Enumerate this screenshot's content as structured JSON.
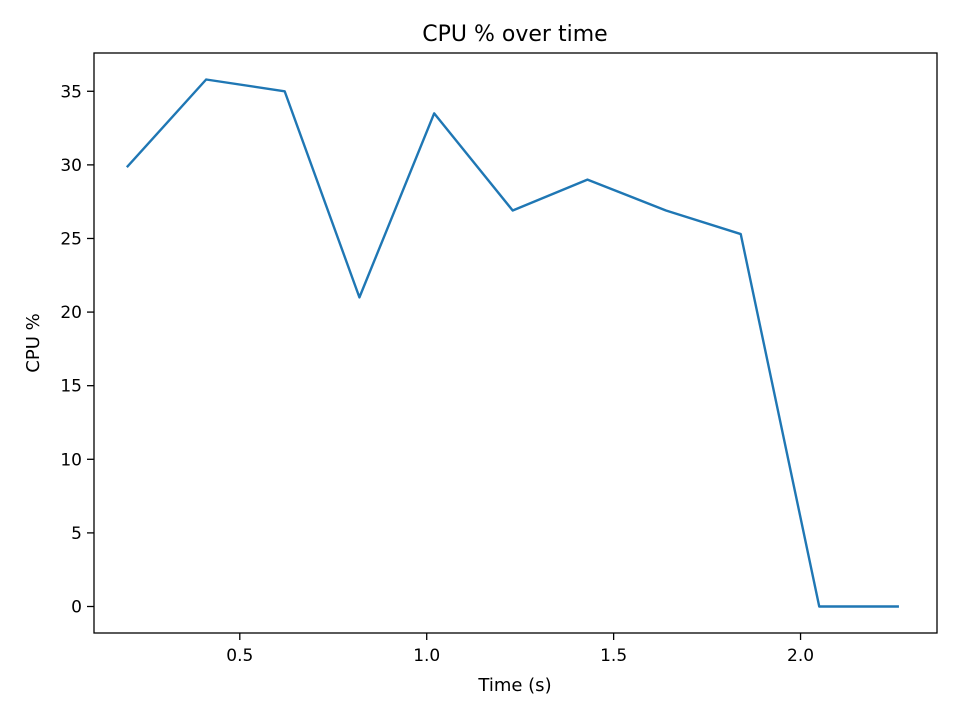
{
  "chart_data": {
    "type": "line",
    "title": "CPU % over time",
    "xlabel": "Time (s)",
    "ylabel": "CPU %",
    "xlim": [
      0.11,
      2.365
    ],
    "ylim": [
      -1.8,
      37.6
    ],
    "xticks": [
      0.5,
      1.0,
      1.5,
      2.0
    ],
    "xtick_labels": [
      "0.5",
      "1.0",
      "1.5",
      "2.0"
    ],
    "yticks": [
      0,
      5,
      10,
      15,
      20,
      25,
      30,
      35
    ],
    "ytick_labels": [
      "0",
      "5",
      "10",
      "15",
      "20",
      "25",
      "30",
      "35"
    ],
    "grid": false,
    "legend": "none",
    "series": [
      {
        "color": "#1f77b4",
        "x": [
          0.2,
          0.41,
          0.62,
          0.82,
          1.02,
          1.23,
          1.43,
          1.64,
          1.84,
          2.05,
          2.26
        ],
        "y": [
          29.9,
          35.8,
          35.0,
          21.0,
          33.5,
          26.9,
          29.0,
          26.9,
          25.3,
          0.0,
          0.0
        ]
      }
    ]
  }
}
